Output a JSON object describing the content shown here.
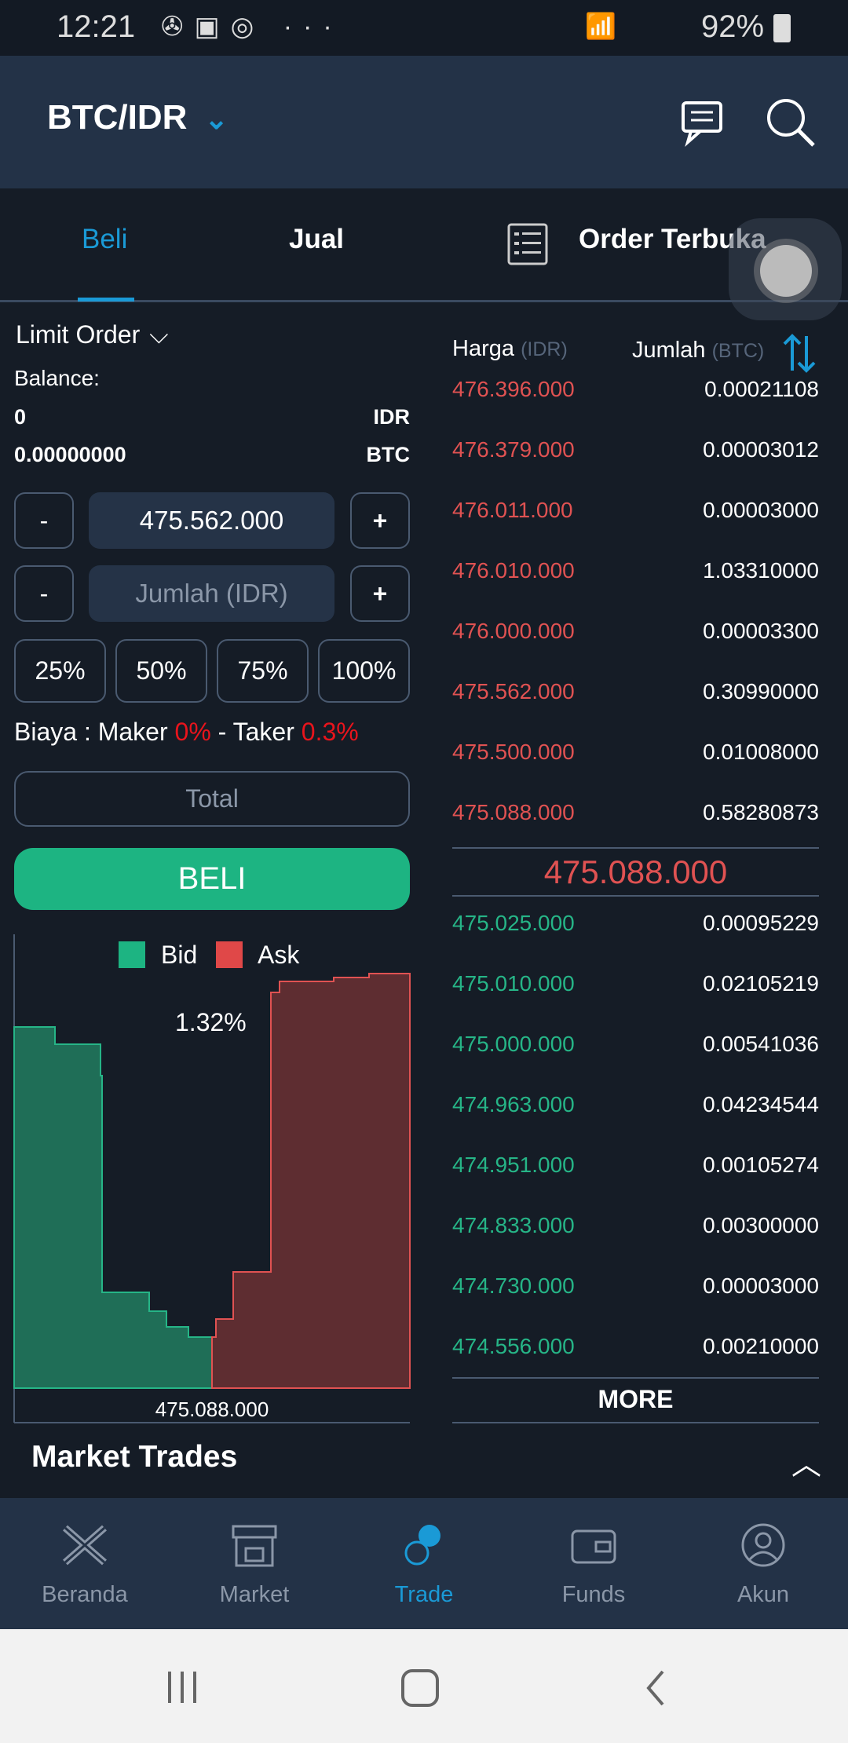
{
  "status": {
    "time": "12:21",
    "battery": "92%"
  },
  "header": {
    "pair": "BTC/IDR"
  },
  "tabs": [
    {
      "label": "Beli",
      "active": true
    },
    {
      "label": "Jual"
    },
    {
      "label": "Order Terbuka"
    }
  ],
  "form": {
    "order_type": "Limit Order",
    "balance_label": "Balance:",
    "balances": [
      {
        "value": "0",
        "unit": "IDR"
      },
      {
        "value": "0.00000000",
        "unit": "BTC"
      }
    ],
    "price_value": "475.562.000",
    "amount_placeholder": "Jumlah (IDR)",
    "minus": "-",
    "plus": "+",
    "percents": [
      "25%",
      "50%",
      "75%",
      "100%"
    ],
    "fee": {
      "prefix": "Biaya : Maker ",
      "maker": "0%",
      "mid": " - Taker ",
      "taker": "0.3%"
    },
    "total_placeholder": "Total",
    "submit": "BELI"
  },
  "depth": {
    "legend_bid": "Bid",
    "legend_ask": "Ask",
    "spread": "1.32%",
    "mid_label": "475.088.000",
    "bid_color": "#1f6e57",
    "ask_color": "#7a3434"
  },
  "orderbook": {
    "price_header": "Harga",
    "price_unit": "(IDR)",
    "amount_header": "Jumlah",
    "amount_unit": "(BTC)",
    "asks": [
      [
        "476.396.000",
        "0.00021108"
      ],
      [
        "476.379.000",
        "0.00003012"
      ],
      [
        "476.011.000",
        "0.00003000"
      ],
      [
        "476.010.000",
        "1.03310000"
      ],
      [
        "476.000.000",
        "0.00003300"
      ],
      [
        "475.562.000",
        "0.30990000"
      ],
      [
        "475.500.000",
        "0.01008000"
      ],
      [
        "475.088.000",
        "0.58280873"
      ]
    ],
    "last_price": "475.088.000",
    "bids": [
      [
        "475.025.000",
        "0.00095229"
      ],
      [
        "475.010.000",
        "0.02105219"
      ],
      [
        "475.000.000",
        "0.00541036"
      ],
      [
        "474.963.000",
        "0.04234544"
      ],
      [
        "474.951.000",
        "0.00105274"
      ],
      [
        "474.833.000",
        "0.00300000"
      ],
      [
        "474.730.000",
        "0.00003000"
      ],
      [
        "474.556.000",
        "0.00210000"
      ]
    ],
    "more": "MORE"
  },
  "market_trades": "Market Trades",
  "nav": [
    {
      "label": "Beranda"
    },
    {
      "label": "Market"
    },
    {
      "label": "Trade",
      "active": true
    },
    {
      "label": "Funds"
    },
    {
      "label": "Akun"
    }
  ],
  "colors": {
    "accent": "#1a9ad6",
    "ask": "#e05252",
    "bid": "#26b587",
    "buy_button": "#1db482"
  }
}
